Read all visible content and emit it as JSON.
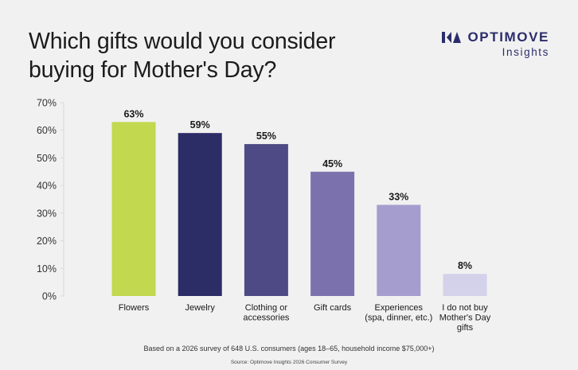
{
  "header": {
    "title": "Which gifts would you consider buying for Mother's Day?",
    "brand_name": "OPTIMOVE",
    "brand_sub": "Insights",
    "brand_icon": "optimove-logo-icon"
  },
  "chart_data": {
    "type": "bar",
    "title": "Which gifts would you consider buying for Mother's Day?",
    "categories": [
      "Flowers",
      "Jewelry",
      "Clothing or accessories",
      "Gift cards",
      "Experiences (spa, dinner, etc.)",
      "I do not buy Mother's Day gifts"
    ],
    "category_lines": [
      [
        "Flowers"
      ],
      [
        "Jewelry"
      ],
      [
        "Clothing or",
        "accessories"
      ],
      [
        "Gift cards"
      ],
      [
        "Experiences",
        "(spa, dinner, etc.)"
      ],
      [
        "I do not buy",
        "Mother's Day",
        "gifts"
      ]
    ],
    "values": [
      63,
      59,
      55,
      45,
      33,
      8
    ],
    "data_labels": [
      "63%",
      "59%",
      "55%",
      "45%",
      "33%",
      "8%"
    ],
    "colors": [
      "#c2d84f",
      "#2c2c66",
      "#4e4a85",
      "#7b72ad",
      "#a59dce",
      "#d4d1ea"
    ],
    "ylim": [
      0,
      70
    ],
    "yticks": [
      0,
      10,
      20,
      30,
      40,
      50,
      60,
      70
    ],
    "ytick_labels": [
      "0%",
      "10%",
      "20%",
      "30%",
      "40%",
      "50%",
      "60%",
      "70%"
    ],
    "xlabel": "",
    "ylabel": "",
    "grid": false
  },
  "footer": {
    "note": "Based on a 2026 survey of 648 U.S. consumers (ages 18–65, household income $75,000+)",
    "source": "Source: Optimove Insights 2026 Consumer Survey"
  }
}
